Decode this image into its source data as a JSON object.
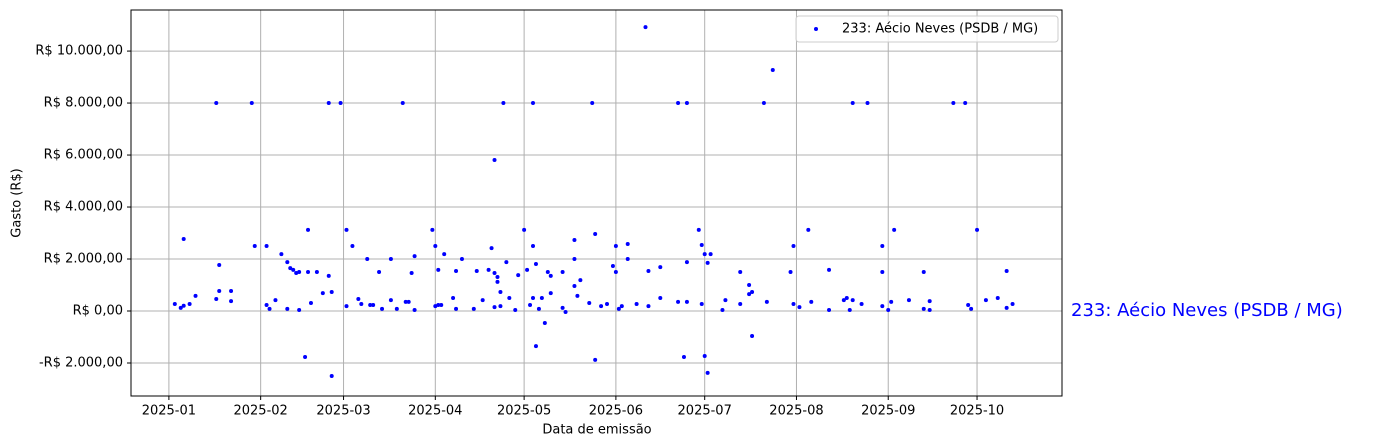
{
  "chart_data": {
    "type": "scatter",
    "xlabel": "Data de emissão",
    "ylabel": "Gasto (R$)",
    "annotation": "233: Aécio Neves (PSDB / MG)",
    "legend": "upper right",
    "grid": true,
    "xlim": [
      -12.8,
      301.7
    ],
    "xticks": [
      {
        "value": 0,
        "label": "2025-01"
      },
      {
        "value": 31,
        "label": "2025-02"
      },
      {
        "value": 59,
        "label": "2025-03"
      },
      {
        "value": 90,
        "label": "2025-04"
      },
      {
        "value": 120,
        "label": "2025-05"
      },
      {
        "value": 151,
        "label": "2025-06"
      },
      {
        "value": 181,
        "label": "2025-07"
      },
      {
        "value": 212,
        "label": "2025-08"
      },
      {
        "value": 243,
        "label": "2025-09"
      },
      {
        "value": 273,
        "label": "2025-10"
      }
    ],
    "ylim": [
      -3270,
      11580
    ],
    "yticks": [
      {
        "value": -2000,
        "label": "-R$ 2.000,00"
      },
      {
        "value": 0,
        "label": "R$ 0,00"
      },
      {
        "value": 2000,
        "label": "R$ 2.000,00"
      },
      {
        "value": 4000,
        "label": "R$ 4.000,00"
      },
      {
        "value": 6000,
        "label": "R$ 6.000,00"
      },
      {
        "value": 8000,
        "label": "R$ 8.000,00"
      },
      {
        "value": 10000,
        "label": "R$ 10.000,00"
      }
    ],
    "series": [
      {
        "name": "233: Aécio Neves (PSDB / MG)",
        "color": "blue",
        "x": [
          2,
          4,
          5,
          5,
          7,
          9,
          16,
          16,
          17,
          17,
          21,
          21,
          28,
          29,
          33,
          33,
          34,
          36,
          38,
          40,
          40,
          41,
          42,
          43,
          44,
          44,
          46,
          47,
          47,
          48,
          50,
          52,
          54,
          54,
          55,
          55,
          58,
          60,
          60,
          62,
          64,
          65,
          67,
          68,
          69,
          71,
          72,
          75,
          75,
          77,
          79,
          80,
          81,
          82,
          83,
          83,
          89,
          90,
          90,
          91,
          91,
          92,
          93,
          96,
          97,
          97,
          99,
          103,
          104,
          106,
          108,
          109,
          110,
          110,
          110,
          111,
          111,
          112,
          112,
          113,
          114,
          115,
          117,
          118,
          120,
          121,
          122,
          123,
          123,
          123,
          124,
          124,
          125,
          126,
          127,
          128,
          129,
          129,
          133,
          133,
          134,
          137,
          137,
          137,
          138,
          139,
          142,
          143,
          144,
          144,
          146,
          148,
          150,
          151,
          151,
          152,
          153,
          155,
          155,
          158,
          161,
          162,
          162,
          166,
          166,
          172,
          172,
          174,
          175,
          175,
          175,
          179,
          180,
          180,
          181,
          181,
          182,
          182,
          183,
          187,
          188,
          193,
          193,
          196,
          196,
          197,
          197,
          201,
          202,
          204,
          210,
          211,
          211,
          213,
          216,
          217,
          223,
          223,
          228,
          229,
          230,
          231,
          231,
          234,
          236,
          241,
          241,
          241,
          243,
          244,
          245,
          250,
          255,
          255,
          257,
          257,
          265,
          269,
          270,
          271,
          273,
          276,
          280,
          283,
          283,
          285
        ],
        "values": [
          270,
          120,
          2770,
          200,
          270,
          580,
          8000,
          460,
          1770,
          770,
          380,
          770,
          8000,
          2500,
          2500,
          230,
          80,
          420,
          2190,
          1880,
          80,
          1650,
          1580,
          1460,
          1500,
          40,
          -1770,
          1500,
          3120,
          310,
          1500,
          690,
          8000,
          1350,
          730,
          -2500,
          8000,
          190,
          3120,
          2500,
          460,
          270,
          2000,
          230,
          230,
          1500,
          80,
          2000,
          420,
          80,
          8000,
          350,
          350,
          1460,
          2110,
          40,
          3120,
          2500,
          190,
          1580,
          230,
          230,
          2190,
          500,
          1540,
          80,
          2000,
          80,
          1540,
          420,
          1580,
          2420,
          5810,
          1460,
          150,
          1120,
          1310,
          190,
          730,
          8000,
          1880,
          500,
          40,
          1380,
          3120,
          1580,
          230,
          8000,
          2500,
          500,
          -1350,
          1810,
          80,
          500,
          -460,
          1500,
          1350,
          690,
          1500,
          120,
          -40,
          960,
          2730,
          2000,
          580,
          1190,
          310,
          8000,
          2960,
          -1880,
          190,
          270,
          1730,
          1500,
          2500,
          80,
          190,
          2580,
          2000,
          270,
          10920,
          1540,
          190,
          1690,
          500,
          8000,
          350,
          -1770,
          8000,
          1880,
          350,
          3120,
          2540,
          270,
          -1730,
          2190,
          -2380,
          1850,
          2190,
          40,
          420,
          1500,
          270,
          650,
          1000,
          -960,
          730,
          8000,
          350,
          9270,
          1500,
          2500,
          270,
          150,
          3120,
          350,
          1580,
          40,
          420,
          500,
          40,
          8000,
          420,
          270,
          8000,
          190,
          2500,
          1500,
          40,
          350,
          3120,
          420,
          1500,
          80,
          380,
          40,
          8000,
          8000,
          230,
          80,
          3120,
          420,
          500,
          1540,
          120,
          270
        ]
      }
    ]
  }
}
